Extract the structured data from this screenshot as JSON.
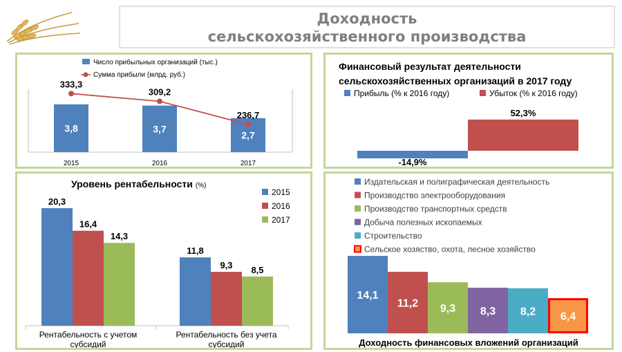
{
  "title": {
    "line1": "Доходность",
    "line2": "сельскохозяйственного производства"
  },
  "colors": {
    "blue": "#4f81bd",
    "red": "#c0504d",
    "green": "#9bbb59",
    "purple": "#8064a2",
    "teal": "#4bacc6",
    "orange": "#f79646",
    "panel_border": "#c3d69b",
    "title_text": "#7f7f7f"
  },
  "chart_data": [
    {
      "type": "bar",
      "categories": [
        "2015",
        "2016",
        "2017"
      ],
      "series": [
        {
          "name": "Число прибыльных организаций (тыс.)",
          "type": "bar",
          "values": [
            3.8,
            3.7,
            2.7
          ],
          "labels": [
            "3,8",
            "3,7",
            "2,7"
          ]
        },
        {
          "name": "Сумма прибыли (млрд. руб.)",
          "type": "line",
          "values": [
            333.3,
            309.2,
            236.7
          ],
          "labels": [
            "333,3",
            "309,2",
            "236,7"
          ]
        }
      ],
      "legend": "top-left"
    },
    {
      "type": "bar",
      "title": "Финансовый результат деятельности сельскохозяйственных организаций в 2017 году",
      "title_line1": "Финансовый результат деятельности",
      "title_line2": "сельскохозяйственных организаций в 2017 году",
      "series": [
        {
          "name": "Прибыль (% к 2016 году)",
          "values": [
            -14.9
          ],
          "labels": [
            "-14,9%"
          ]
        },
        {
          "name": "Убыток (% к 2016 году)",
          "values": [
            52.3
          ],
          "labels": [
            "52,3%"
          ]
        }
      ],
      "legend": "top"
    },
    {
      "type": "bar",
      "title": "Уровень рентабельности",
      "title_unit": "(%)",
      "categories": [
        "Рентабельность с учетом субсидий",
        "Рентабельность без учета субсидий"
      ],
      "category_lines": [
        [
          "Рентабельность с учетом",
          "субсидий"
        ],
        [
          "Рентабельность без учета",
          "субсидий"
        ]
      ],
      "series": [
        {
          "name": "2015",
          "values": [
            20.3,
            11.8
          ],
          "labels": [
            "20,3",
            "11,8"
          ]
        },
        {
          "name": "2016",
          "values": [
            16.4,
            9.3
          ],
          "labels": [
            "16,4",
            "9,3"
          ]
        },
        {
          "name": "2017",
          "values": [
            14.3,
            8.5
          ],
          "labels": [
            "14,3",
            "8,5"
          ]
        }
      ],
      "legend": "top-right"
    },
    {
      "type": "bar",
      "title": "Доходность финансовых вложений организаций",
      "series": [
        {
          "name": "Издательская и полиграфическая деятельность",
          "values": [
            14.1
          ],
          "labels": [
            "14,1"
          ]
        },
        {
          "name": "Производство электрооборудования",
          "values": [
            11.2
          ],
          "labels": [
            "11,2"
          ]
        },
        {
          "name": "Производство транспортных средств",
          "values": [
            9.3
          ],
          "labels": [
            "9,3"
          ]
        },
        {
          "name": "Добыча полезных ископаемых",
          "values": [
            8.3
          ],
          "labels": [
            "8,3"
          ]
        },
        {
          "name": "Строительство",
          "values": [
            8.2
          ],
          "labels": [
            "8,2"
          ]
        },
        {
          "name": "Сельское хозяство, охота, лесное хозяйство",
          "values": [
            6.4
          ],
          "labels": [
            "6,4"
          ],
          "highlighted": true
        }
      ],
      "legend": "top"
    }
  ]
}
